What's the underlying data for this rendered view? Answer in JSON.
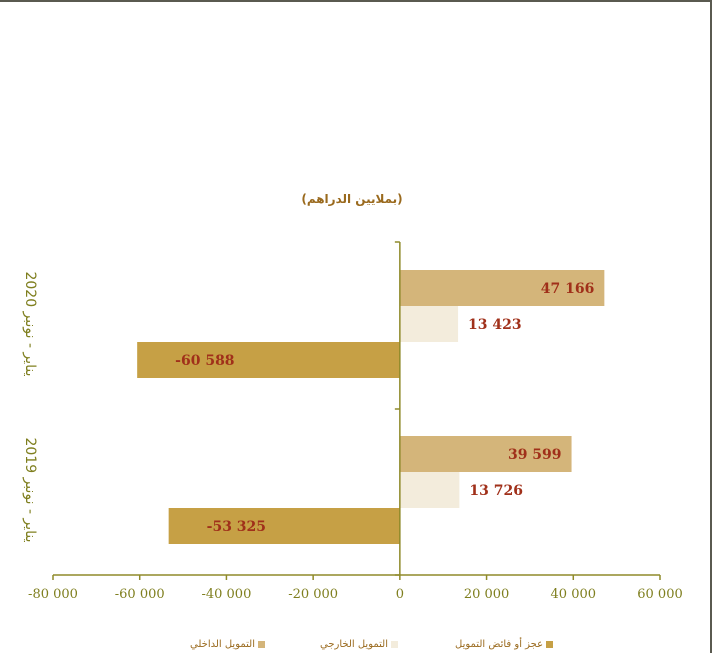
{
  "subtitle": "(بملايين الدراهم)",
  "colors": {
    "axis": "#8f8a2a",
    "tick_text": "#7f7f1f",
    "value_text": "#a0301a",
    "domestic": "#d4b57a",
    "external": "#f3ecdc",
    "deficit": "#c6a045"
  },
  "chart_data": {
    "type": "bar",
    "orientation": "horizontal",
    "categories": [
      "يناير - نونبر 2020",
      "يناير - نونبر 2019"
    ],
    "series": [
      {
        "name": "التمويل الداخلي",
        "values": [
          47166,
          39599
        ],
        "labels": [
          "47 166",
          "39 599"
        ]
      },
      {
        "name": "التمويل الخارجي",
        "values": [
          13423,
          13726
        ],
        "labels": [
          "13 423",
          "13 726"
        ]
      },
      {
        "name": "عجز أو فائض التمويل",
        "values": [
          -60588,
          -53325
        ],
        "labels": [
          "-60 588",
          "-53 325"
        ]
      }
    ],
    "xlim": [
      -80000,
      60000
    ],
    "xticks": [
      -80000,
      -60000,
      -40000,
      -20000,
      0,
      20000,
      40000,
      60000
    ],
    "xtick_labels": [
      "-80 000",
      "-60 000",
      "-40 000",
      "-20 000",
      "0",
      "20 000",
      "40 000",
      "60 000"
    ],
    "grid": false,
    "legend_position": "bottom"
  }
}
